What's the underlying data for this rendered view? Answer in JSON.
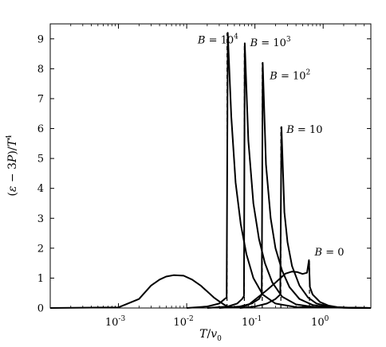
{
  "chart_data": {
    "type": "line",
    "xlabel_parts": [
      "T",
      "/",
      "v",
      "0"
    ],
    "ylabel_parts": [
      "(",
      "ε",
      " − 3",
      "P",
      ")/",
      "T",
      "4"
    ],
    "x_scale": "log",
    "xlim": [
      0.0001,
      5
    ],
    "ylim": [
      0,
      9.5
    ],
    "x_ticks": [
      {
        "value": 0.001,
        "base": "10",
        "exp": "-3"
      },
      {
        "value": 0.01,
        "base": "10",
        "exp": "-2"
      },
      {
        "value": 0.1,
        "base": "10",
        "exp": "-1"
      },
      {
        "value": 1,
        "base": "10",
        "exp": "0"
      }
    ],
    "y_ticks": [
      0,
      1,
      2,
      3,
      4,
      5,
      6,
      7,
      8,
      9
    ],
    "grid": false,
    "series": [
      {
        "name": "B = 0",
        "label_parts": [
          "B",
          " = 0",
          ""
        ],
        "points": [
          [
            0.0001,
            0
          ],
          [
            0.001,
            0.02
          ],
          [
            0.002,
            0.3
          ],
          [
            0.003,
            0.75
          ],
          [
            0.004,
            0.95
          ],
          [
            0.005,
            1.05
          ],
          [
            0.0065,
            1.1
          ],
          [
            0.009,
            1.08
          ],
          [
            0.012,
            0.95
          ],
          [
            0.016,
            0.75
          ],
          [
            0.02,
            0.55
          ],
          [
            0.025,
            0.35
          ],
          [
            0.03,
            0.22
          ],
          [
            0.035,
            0.12
          ],
          [
            0.04,
            0.05
          ],
          [
            0.05,
            0.02
          ],
          [
            0.06,
            0.03
          ],
          [
            0.08,
            0.1
          ],
          [
            0.1,
            0.28
          ],
          [
            0.15,
            0.6
          ],
          [
            0.2,
            0.85
          ],
          [
            0.28,
            1.15
          ],
          [
            0.35,
            1.22
          ],
          [
            0.42,
            1.2
          ],
          [
            0.5,
            1.14
          ],
          [
            0.58,
            1.18
          ],
          [
            0.62,
            1.6
          ],
          [
            0.64,
            0.7
          ],
          [
            0.7,
            0.45
          ],
          [
            0.9,
            0.2
          ],
          [
            1.2,
            0.08
          ],
          [
            1.6,
            0.03
          ],
          [
            2.5,
            0.01
          ],
          [
            5,
            0
          ]
        ],
        "transition_x": 0.63
      },
      {
        "name": "B = 10",
        "label_parts": [
          "B",
          " = 10",
          ""
        ],
        "points": [
          [
            0.06,
            0
          ],
          [
            0.1,
            0.05
          ],
          [
            0.15,
            0.15
          ],
          [
            0.2,
            0.3
          ],
          [
            0.235,
            0.45
          ],
          [
            0.245,
            6.05
          ],
          [
            0.27,
            3.2
          ],
          [
            0.3,
            2.2
          ],
          [
            0.35,
            1.4
          ],
          [
            0.45,
            0.75
          ],
          [
            0.6,
            0.35
          ],
          [
            0.8,
            0.15
          ],
          [
            1.2,
            0.05
          ],
          [
            2,
            0.01
          ],
          [
            5,
            0
          ]
        ],
        "transition_x": 0.24
      },
      {
        "name": "B = 10^2",
        "label_parts": [
          "B",
          " = 10",
          "2"
        ],
        "points": [
          [
            0.03,
            0
          ],
          [
            0.06,
            0.05
          ],
          [
            0.09,
            0.15
          ],
          [
            0.115,
            0.3
          ],
          [
            0.126,
            0.45
          ],
          [
            0.13,
            8.2
          ],
          [
            0.145,
            4.8
          ],
          [
            0.17,
            3.0
          ],
          [
            0.2,
            2.0
          ],
          [
            0.25,
            1.25
          ],
          [
            0.32,
            0.7
          ],
          [
            0.45,
            0.3
          ],
          [
            0.7,
            0.1
          ],
          [
            1.2,
            0.02
          ],
          [
            5,
            0
          ]
        ],
        "transition_x": 0.128
      },
      {
        "name": "B = 10^3",
        "label_parts": [
          "B",
          " = 10",
          "3"
        ],
        "points": [
          [
            0.02,
            0
          ],
          [
            0.04,
            0.05
          ],
          [
            0.055,
            0.15
          ],
          [
            0.065,
            0.3
          ],
          [
            0.069,
            0.4
          ],
          [
            0.071,
            8.85
          ],
          [
            0.08,
            5.6
          ],
          [
            0.095,
            3.5
          ],
          [
            0.115,
            2.3
          ],
          [
            0.14,
            1.5
          ],
          [
            0.18,
            0.85
          ],
          [
            0.25,
            0.38
          ],
          [
            0.4,
            0.12
          ],
          [
            0.8,
            0.02
          ],
          [
            5,
            0
          ]
        ],
        "transition_x": 0.07
      },
      {
        "name": "B = 10^4",
        "label_parts": [
          "B",
          " = 10",
          "4"
        ],
        "points": [
          [
            0.01,
            0
          ],
          [
            0.02,
            0.05
          ],
          [
            0.03,
            0.15
          ],
          [
            0.036,
            0.3
          ],
          [
            0.0385,
            0.35
          ],
          [
            0.04,
            9.2
          ],
          [
            0.045,
            6.4
          ],
          [
            0.052,
            4.2
          ],
          [
            0.062,
            2.8
          ],
          [
            0.075,
            1.8
          ],
          [
            0.095,
            1.0
          ],
          [
            0.13,
            0.45
          ],
          [
            0.2,
            0.15
          ],
          [
            0.4,
            0.03
          ],
          [
            5,
            0
          ]
        ],
        "transition_x": 0.039
      }
    ],
    "annotations": [
      {
        "series": "B = 10^4",
        "x": 0.0145,
        "y": 8.85
      },
      {
        "series": "B = 10^3",
        "x": 0.085,
        "y": 8.75
      },
      {
        "series": "B = 10^2",
        "x": 0.165,
        "y": 7.65
      },
      {
        "series": "B = 10",
        "x": 0.29,
        "y": 5.85
      },
      {
        "series": "B = 0",
        "x": 0.75,
        "y": 1.75
      }
    ]
  }
}
